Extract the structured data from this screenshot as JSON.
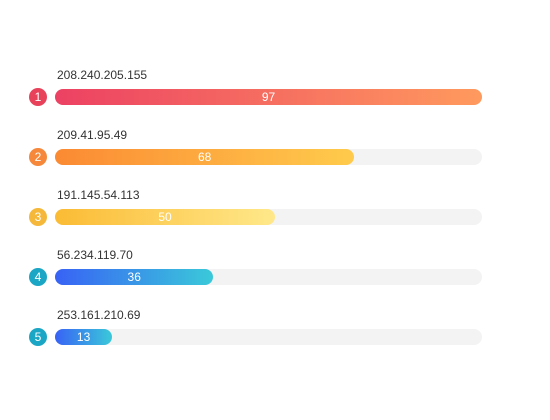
{
  "chart_data": {
    "type": "bar",
    "orientation": "horizontal",
    "categories": [
      "208.240.205.155",
      "209.41.95.49",
      "191.145.54.113",
      "56.234.119.70",
      "253.161.210.69"
    ],
    "values": [
      97,
      68,
      50,
      36,
      13
    ],
    "ranks": [
      "1",
      "2",
      "3",
      "4",
      "5"
    ],
    "xlim": [
      0,
      97
    ],
    "grid": false,
    "legend": "none",
    "colors": [
      {
        "rank": "#e8415a",
        "from": "#ec4163",
        "to": "#ff9a5e"
      },
      {
        "rank": "#f5883a",
        "from": "#fb8a33",
        "to": "#ffcb4c"
      },
      {
        "rank": "#f5b83a",
        "from": "#fbbb34",
        "to": "#ffe88a"
      },
      {
        "rank": "#1aa6c4",
        "from": "#3862f5",
        "to": "#3ac9d9"
      },
      {
        "rank": "#1aa6c4",
        "from": "#3862f5",
        "to": "#3ac9d9"
      }
    ]
  }
}
